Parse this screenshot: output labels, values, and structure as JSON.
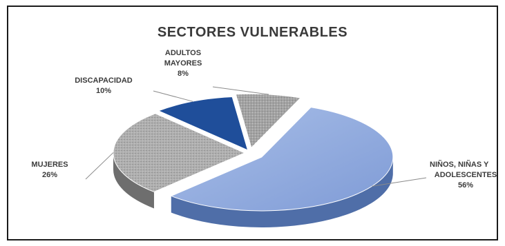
{
  "chart_data": {
    "type": "pie",
    "title": "SECTORES VULNERABLES",
    "slices": [
      {
        "label_lines": [
          "NIÑOS, NIÑAS Y",
          "ADOLESCENTES"
        ],
        "percent_text": "56%",
        "value": 56,
        "color": "#8faadf",
        "side_color": "#4f6ea8"
      },
      {
        "label_lines": [
          "MUJERES"
        ],
        "percent_text": "26%",
        "value": 26,
        "color": "#a8a8a8",
        "side_color": "#6e6e6e"
      },
      {
        "label_lines": [
          "DISCAPACIDAD"
        ],
        "percent_text": "10%",
        "value": 10,
        "color": "#1f4e9a",
        "side_color": "#0f2e66"
      },
      {
        "label_lines": [
          "ADULTOS",
          "MAYORES"
        ],
        "percent_text": "8%",
        "value": 8,
        "color": "#9a9a9a",
        "side_color": "#5a5a5a"
      }
    ]
  }
}
